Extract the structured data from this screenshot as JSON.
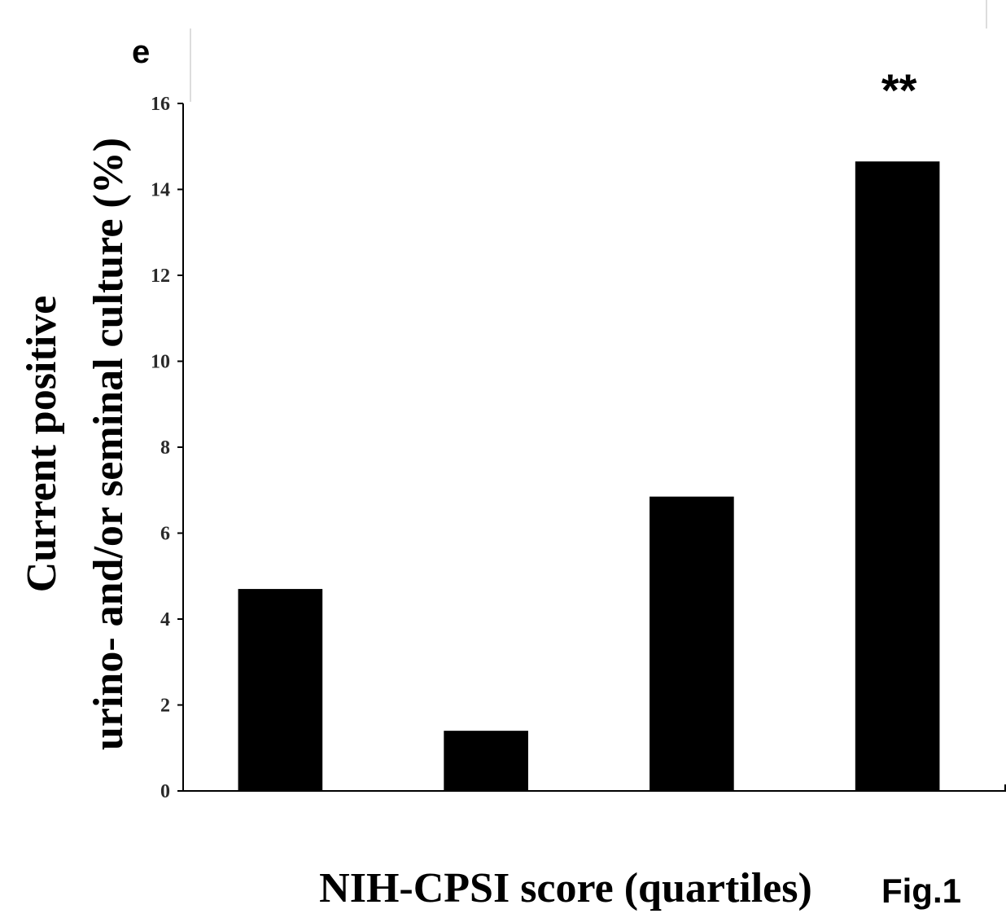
{
  "chart_data": {
    "type": "bar",
    "categories": [
      "",
      "",
      "",
      ""
    ],
    "values": [
      4.7,
      1.4,
      6.85,
      14.65
    ],
    "ylim": [
      0,
      16
    ],
    "yticks": [
      0,
      2,
      4,
      6,
      8,
      10,
      12,
      14,
      16
    ],
    "ylabel_line1": "Current positive",
    "ylabel_line2": "urino- and/or seminal culture (%)",
    "xlabel": "NIH-CPSI score (quartiles)",
    "annotations": [
      {
        "text": "**",
        "category_index": 3
      }
    ],
    "bar_color": "#000000",
    "grid": false
  },
  "figure_label": "Fig.1",
  "corner_glyph": "e"
}
